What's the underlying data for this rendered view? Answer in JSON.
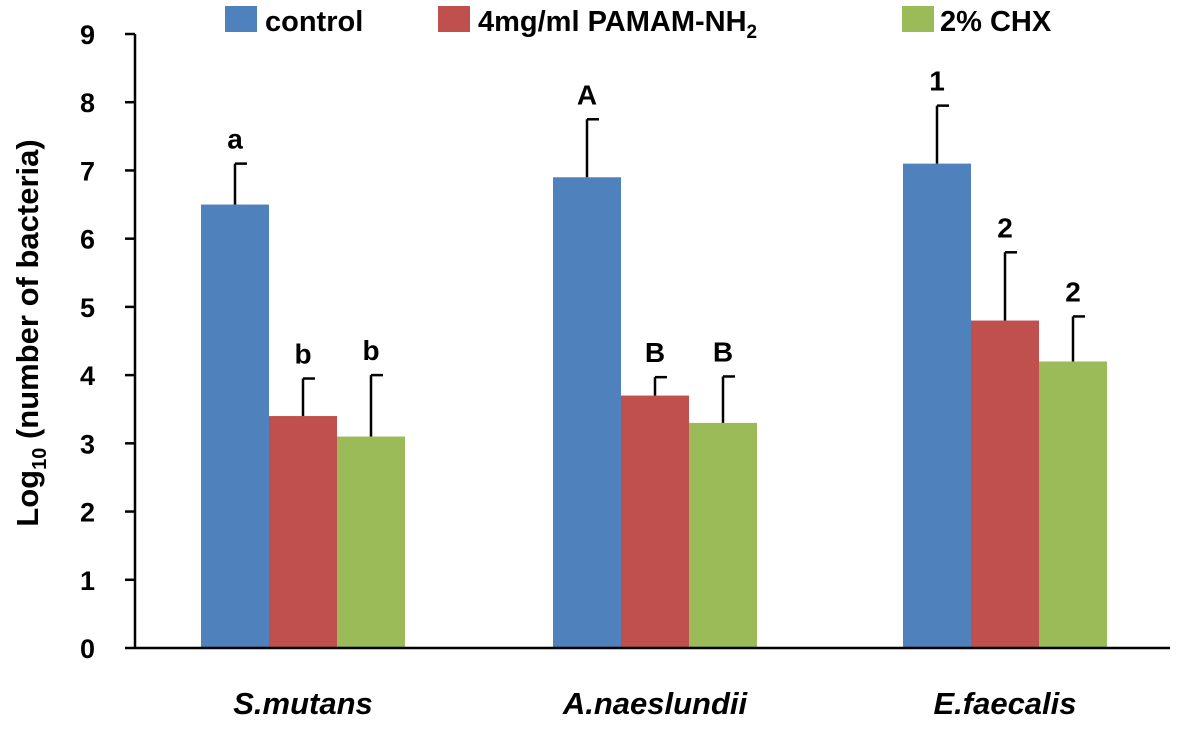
{
  "chart_data": {
    "type": "bar",
    "title": "",
    "xlabel": "",
    "ylabel": {
      "prefix": "Log",
      "subscript": "10",
      "suffix": " (number of bacteria)"
    },
    "ylim": [
      0,
      9
    ],
    "yticks": [
      "0",
      "1",
      "2",
      "3",
      "4",
      "5",
      "6",
      "7",
      "8",
      "9"
    ],
    "categories": [
      "S.mutans",
      "A.naeslundii",
      "E.faecalis"
    ],
    "legend_position": "top",
    "series": [
      {
        "name": "control",
        "legend_text": "control",
        "color": "#4f81bd",
        "values": [
          6.5,
          6.9,
          7.1
        ],
        "error": [
          0.6,
          0.85,
          0.85
        ],
        "labels": [
          "a",
          "A",
          "1"
        ]
      },
      {
        "name": "4mg/ml PAMAM-NH2",
        "legend_text": "4mg/ml PAMAM-NH",
        "legend_sub": "2",
        "color": "#c0504d",
        "values": [
          3.4,
          3.7,
          4.8
        ],
        "error": [
          0.55,
          0.27,
          1.0
        ],
        "labels": [
          "b",
          "B",
          "2"
        ]
      },
      {
        "name": "2% CHX",
        "legend_text": "2% CHX",
        "color": "#9bbb59",
        "values": [
          3.1,
          3.3,
          4.2
        ],
        "error": [
          0.9,
          0.68,
          0.66
        ],
        "labels": [
          "b",
          "B",
          "2"
        ]
      }
    ]
  }
}
